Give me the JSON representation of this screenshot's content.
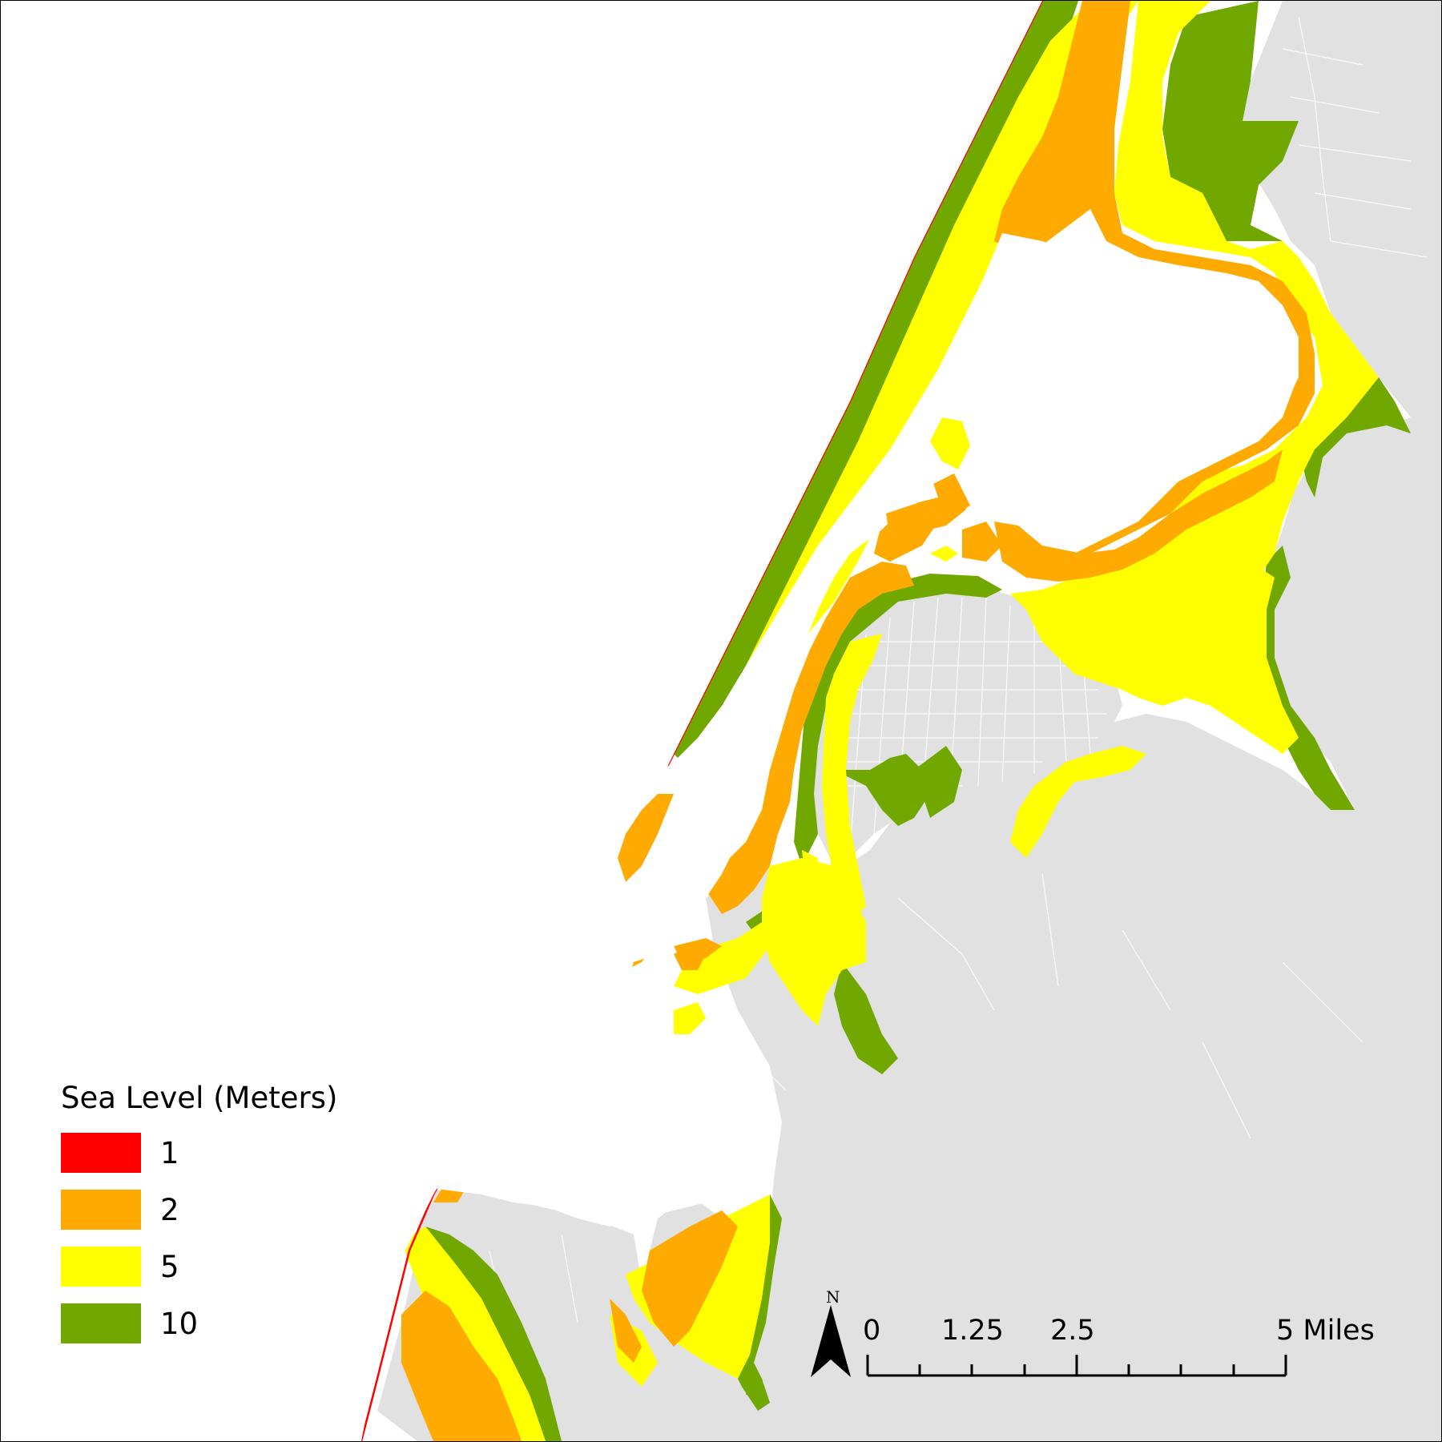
{
  "legend": {
    "title": "Sea Level (Meters)",
    "items": [
      {
        "label": "1",
        "color": "#ff0000"
      },
      {
        "label": "2",
        "color": "#ffaa00"
      },
      {
        "label": "5",
        "color": "#ffff00"
      },
      {
        "label": "10",
        "color": "#70a800"
      }
    ]
  },
  "colors": {
    "land": "#e1e1e1",
    "water": "#ffffff",
    "roads": "#ffffff"
  },
  "north_arrow": {
    "label": "N",
    "icon": "north-arrow-icon"
  },
  "scale_bar": {
    "labels": [
      "0",
      "1.25",
      "2.5",
      "5 Miles"
    ]
  }
}
